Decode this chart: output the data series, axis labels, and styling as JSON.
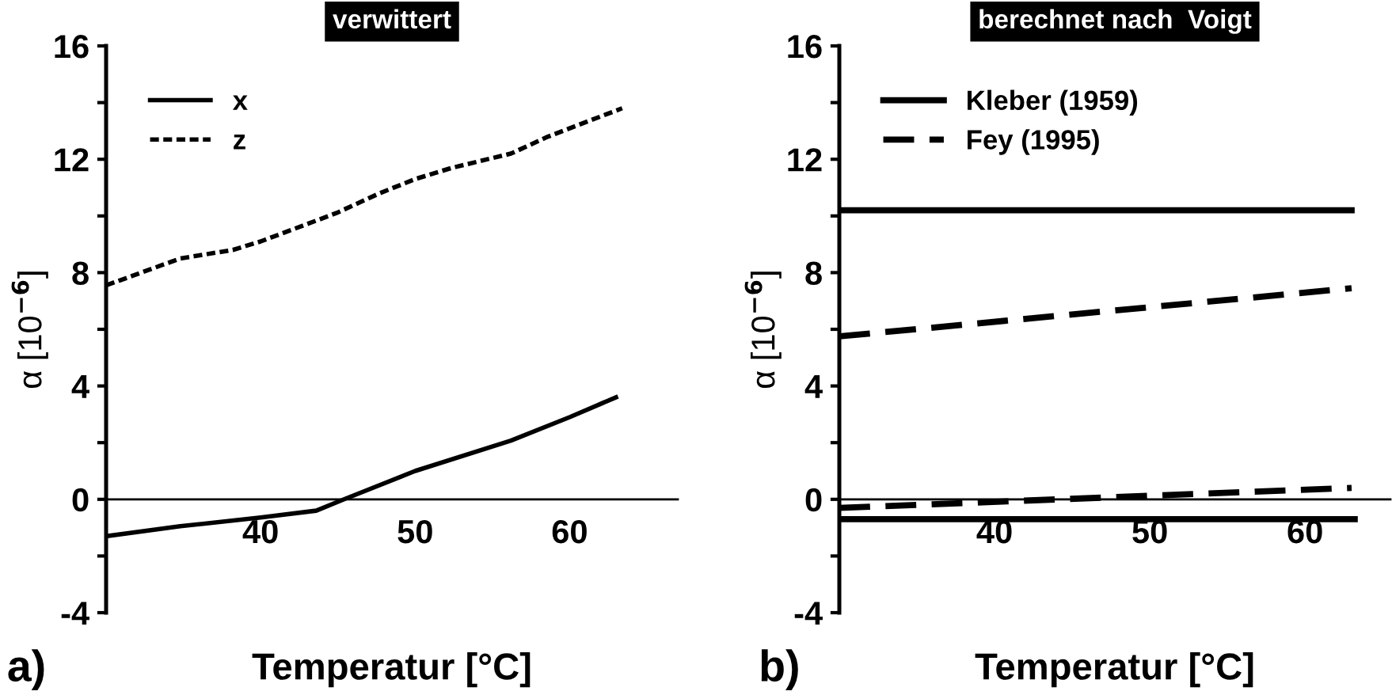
{
  "chart_data": [
    {
      "type": "line",
      "title": "verwittert",
      "xlabel": "Temperatur [°C]",
      "ylabel": "α [10$^{−6}$]",
      "annotations": [
        "a)"
      ],
      "xlim": [
        30,
        67
      ],
      "xticks": [
        40,
        50,
        60
      ],
      "ylim": [
        -4,
        16
      ],
      "yticks": [
        -4,
        {
          "value": -2,
          "label": null
        },
        0,
        {
          "value": 2,
          "label": null
        },
        4,
        {
          "value": 6,
          "label": null
        },
        8,
        {
          "value": 10,
          "label": null
        },
        12,
        {
          "value": 14,
          "label": null
        },
        16
      ],
      "legend": "top left",
      "grid": false,
      "series": [
        {
          "name": "x",
          "color": "#000000",
          "line_style": "solid",
          "x": [
            30,
            34.8,
            40,
            43.6,
            45.4,
            50,
            56.2,
            60,
            63
          ],
          "values": [
            -1.3,
            -0.95,
            -0.64,
            -0.4,
            0,
            1.0,
            2.07,
            2.9,
            3.6
          ]
        },
        {
          "name": "z",
          "color": "#000000",
          "line_style": "dotted",
          "x": [
            30,
            34.8,
            38.2,
            40,
            44.9,
            47.7,
            50,
            52.4,
            56.2,
            58.6,
            63.4
          ],
          "values": [
            7.55,
            8.5,
            8.8,
            9.1,
            10.1,
            10.8,
            11.3,
            11.7,
            12.2,
            12.8,
            13.8
          ]
        }
      ]
    },
    {
      "type": "line",
      "title": "berechnet nach  Voigt",
      "xlabel": "Temperatur [°C]",
      "ylabel": "α [10$^{−6}$]",
      "annotations": [
        "b)"
      ],
      "xlim": [
        30,
        65.5
      ],
      "xticks": [
        40,
        50,
        60
      ],
      "ylim": [
        -4,
        16
      ],
      "yticks": [
        -4,
        {
          "value": -2,
          "label": null
        },
        0,
        {
          "value": 2,
          "label": null
        },
        4,
        {
          "value": 6,
          "label": null
        },
        8,
        {
          "value": 10,
          "label": null
        },
        12,
        {
          "value": 14,
          "label": null
        },
        16
      ],
      "legend": "top left",
      "grid": false,
      "series": [
        {
          "name": "Kleber (1959)",
          "color": "#000000",
          "line_style": "solid",
          "x": [
            30,
            63
          ],
          "values": [
            10.2,
            10.2
          ]
        },
        {
          "name": "Fey (1995)",
          "color": "#000000",
          "line_style": "dashed",
          "x": [
            30,
            63
          ],
          "values": [
            5.75,
            7.45
          ]
        },
        {
          "color": "#000000",
          "line_style": "solid",
          "x": [
            30,
            63.2
          ],
          "values": [
            -0.7,
            -0.7
          ]
        },
        {
          "color": "#000000",
          "line_style": "dashed",
          "x": [
            30,
            63
          ],
          "values": [
            -0.3,
            0.4
          ]
        }
      ]
    }
  ]
}
